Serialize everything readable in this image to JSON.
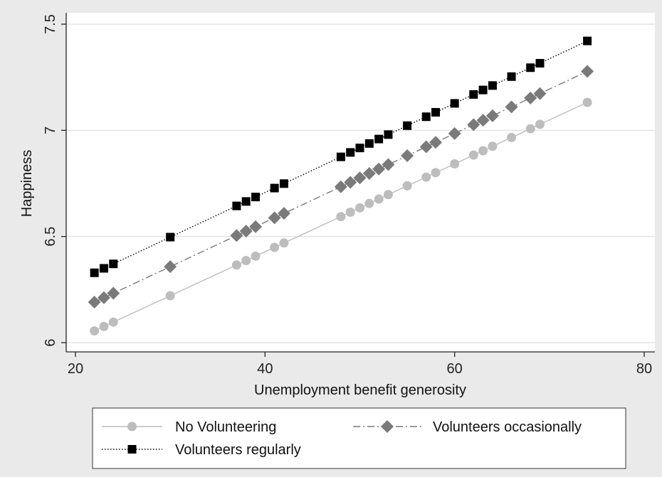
{
  "chart_data": {
    "type": "line",
    "title": "",
    "xlabel": "Unemployment benefit generosity",
    "ylabel": "Happiness",
    "xlim": [
      20,
      80
    ],
    "ylim": [
      6,
      7.5
    ],
    "x_ticks": [
      "20",
      "40",
      "60",
      "80"
    ],
    "y_ticks": [
      "6",
      "6.5",
      "7",
      "7.5"
    ],
    "grid": "horizontal",
    "legend_position": "bottom",
    "x": [
      22,
      23,
      24,
      30,
      37,
      38,
      39,
      41,
      42,
      48,
      49,
      50,
      51,
      52,
      53,
      55,
      57,
      58,
      60,
      62,
      63,
      64,
      66,
      68,
      69,
      74
    ],
    "series": [
      {
        "name": "No Volunteering",
        "color": "#bdbdbd",
        "marker": "circle",
        "line": "solid",
        "intercept": 5.6,
        "slope": 0.0207
      },
      {
        "name": "Volunteers occasionally",
        "color": "#7a7a7a",
        "marker": "diamond",
        "line": "dashdot",
        "intercept": 5.731,
        "slope": 0.0209
      },
      {
        "name": "Volunteers regularly",
        "color": "#000000",
        "marker": "square",
        "line": "dotted",
        "intercept": 5.867,
        "slope": 0.021
      }
    ]
  }
}
